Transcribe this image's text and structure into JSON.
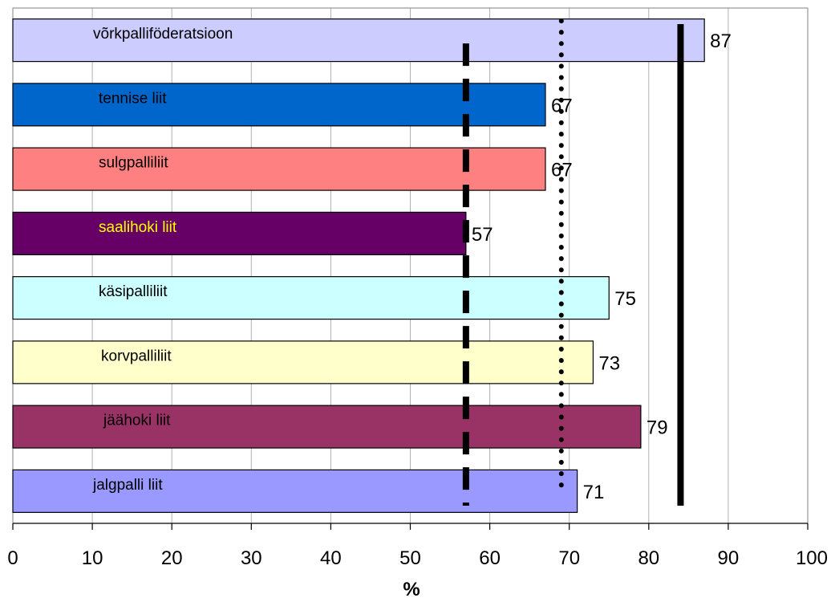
{
  "chart_data": {
    "type": "bar",
    "orientation": "horizontal",
    "categories": [
      "võrkpalliföderatsioon",
      "tennise liit",
      "sulgpalliliit",
      "saalihoki liit",
      "käsipalliliit",
      "korvpalliliit",
      "jäähoki liit",
      "jalgpalli liit"
    ],
    "values": [
      87,
      67,
      67,
      57,
      75,
      73,
      79,
      71
    ],
    "value_labels": [
      "87",
      "67",
      "67",
      "57",
      "75",
      "73",
      "79",
      "71"
    ],
    "bar_colors": [
      "#ccccff",
      "#0066cc",
      "#ff8080",
      "#660066",
      "#ccffff",
      "#ffffcc",
      "#993366",
      "#9999ff"
    ],
    "label_colors": [
      "#000000",
      "#000000",
      "#000000",
      "#ffff00",
      "#000000",
      "#000000",
      "#000000",
      "#000000"
    ],
    "xlim": [
      0,
      100
    ],
    "x_ticks": [
      0,
      10,
      20,
      30,
      40,
      50,
      60,
      70,
      80,
      90,
      100
    ],
    "x_tick_labels": [
      "0",
      "10",
      "20",
      "30",
      "40",
      "50",
      "60",
      "70",
      "80",
      "90",
      "100"
    ],
    "xlabel": "%",
    "title": "",
    "grid": true,
    "legend": "none",
    "reference_lines": [
      {
        "style": "dashed",
        "x": 57
      },
      {
        "style": "dotted",
        "x": 69
      },
      {
        "style": "solid",
        "x": 84
      }
    ]
  }
}
